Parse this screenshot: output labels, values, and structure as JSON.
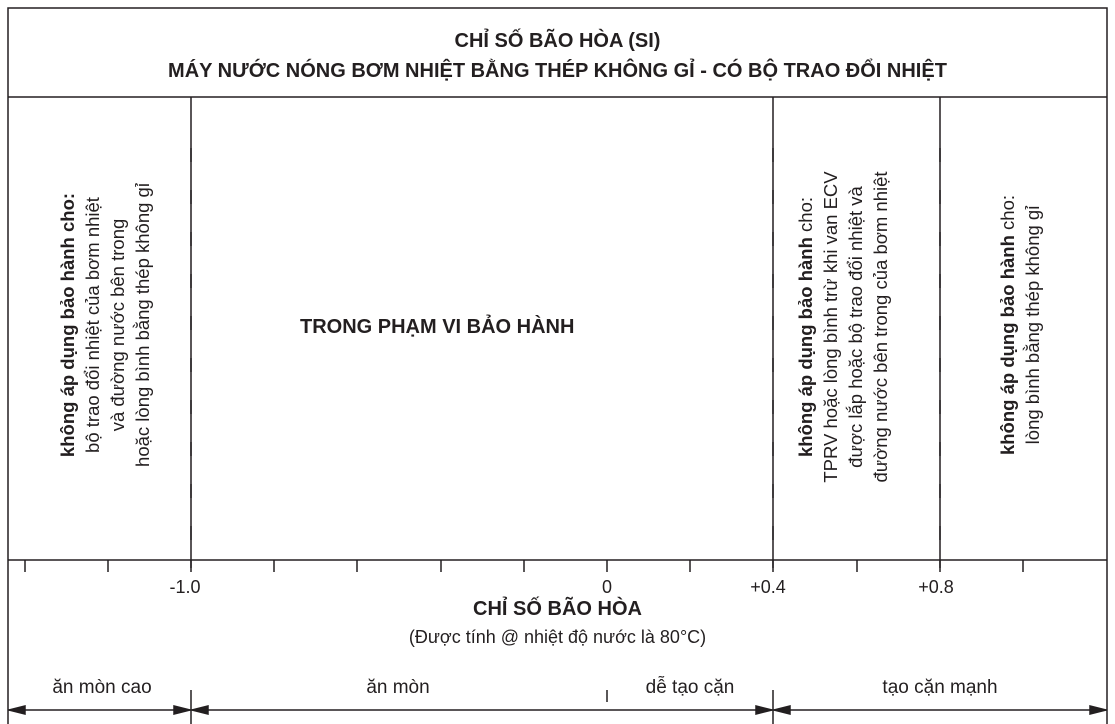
{
  "header": {
    "title_line1": "CHỈ SỐ BÃO HÒA (SI)",
    "title_line2": "MÁY NƯỚC NÓNG BƠM NHIỆT BẰNG THÉP KHÔNG GỈ - CÓ BỘ TRAO ĐỔI NHIỆT"
  },
  "regions": {
    "left": {
      "bold": "không áp dụng bảo hành cho:",
      "lines": [
        "bộ trao đổi nhiệt của bơm nhiệt",
        "và đường nước bên trong",
        "hoặc lòng bình bằng thép không gỉ"
      ]
    },
    "center": {
      "label": "TRONG PHẠM VI BẢO HÀNH"
    },
    "mid_right": {
      "bold": "không áp dụng bảo hành",
      "bold_suffix": " cho:",
      "lines": [
        "TPRV hoặc lòng bình trừ khi van ECV",
        "được lắp hoặc bộ trao đổi nhiệt và",
        "đường nước bên trong của bơm nhiệt"
      ]
    },
    "right": {
      "bold": "không áp dụng bảo hành",
      "bold_suffix": " cho:",
      "lines": [
        "lòng bình bằng thép không gỉ"
      ]
    }
  },
  "axis": {
    "tick_labels": [
      "-1.0",
      "0",
      "+0.4",
      "+0.8"
    ],
    "title": "CHỈ SỐ BÃO HÒA",
    "note": "(Được tính @ nhiệt độ nước là 80°C)"
  },
  "zones": [
    "ăn mòn cao",
    "ăn mòn",
    "dễ tạo cặn",
    "tạo cặn mạnh"
  ]
}
